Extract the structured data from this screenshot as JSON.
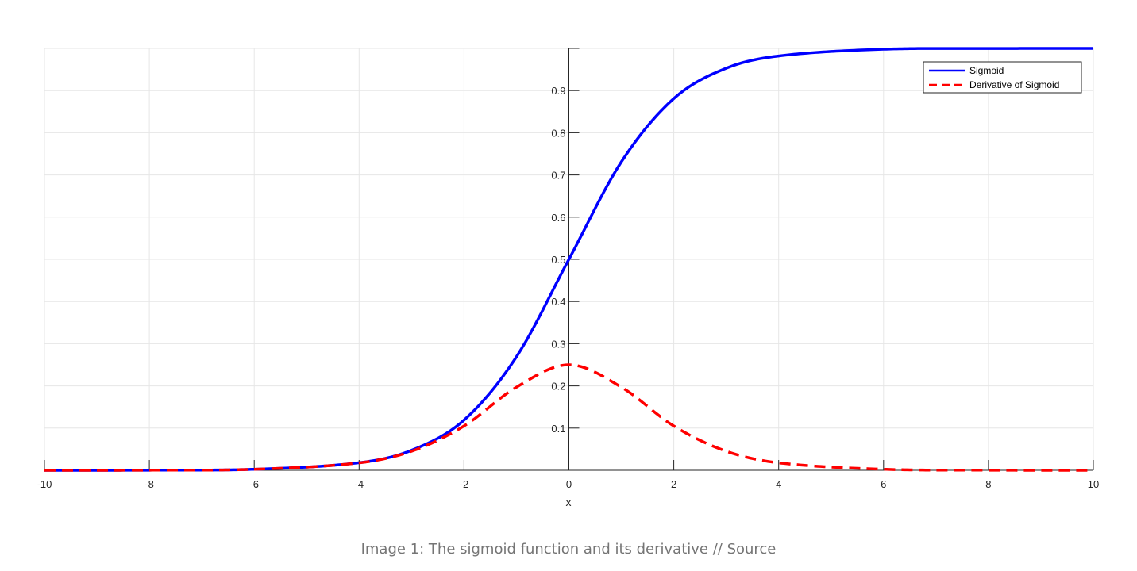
{
  "chart_data": {
    "type": "line",
    "xlabel": "x",
    "ylabel": "",
    "xlim": [
      -10,
      10
    ],
    "ylim": [
      0,
      1
    ],
    "xticks": [
      -10,
      -8,
      -6,
      -4,
      -2,
      0,
      2,
      4,
      6,
      8,
      10
    ],
    "yticks": [
      0.1,
      0.2,
      0.3,
      0.4,
      0.5,
      0.6,
      0.7,
      0.8,
      0.9
    ],
    "grid": true,
    "legend_position": "top-right",
    "series": [
      {
        "name": "Sigmoid",
        "color": "#0000ff",
        "style": "solid",
        "x": [
          -10,
          -8,
          -6,
          -4,
          -3,
          -2,
          -1,
          0,
          1,
          2,
          3,
          4,
          6,
          8,
          10
        ],
        "y": [
          4.54e-05,
          0.000335,
          0.00247,
          0.018,
          0.0474,
          0.119,
          0.269,
          0.5,
          0.731,
          0.881,
          0.953,
          0.982,
          0.998,
          0.9997,
          0.99995
        ]
      },
      {
        "name": "Derivative of Sigmoid",
        "color": "#ff0000",
        "style": "dashed",
        "x": [
          -10,
          -8,
          -6,
          -4,
          -3,
          -2,
          -1,
          0,
          1,
          2,
          3,
          4,
          6,
          8,
          10
        ],
        "y": [
          4.54e-05,
          0.000335,
          0.00247,
          0.0177,
          0.0452,
          0.105,
          0.197,
          0.25,
          0.197,
          0.105,
          0.0452,
          0.0177,
          0.00247,
          0.000335,
          4.54e-05
        ]
      }
    ]
  },
  "caption": {
    "text": "Image 1: The sigmoid function and its derivative // ",
    "link": "Source"
  }
}
